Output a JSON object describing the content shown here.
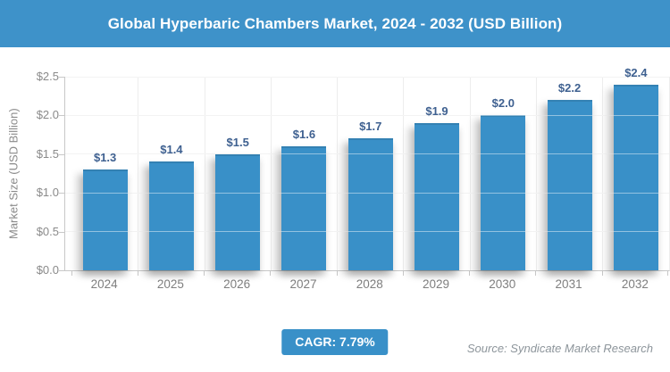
{
  "header": {
    "title": "Global Hyperbaric Chambers Market, 2024 - 2032 (USD Billion)"
  },
  "chart_data": {
    "type": "bar",
    "title": "Global Hyperbaric Chambers Market, 2024 - 2032 (USD Billion)",
    "categories": [
      "2024",
      "2025",
      "2026",
      "2027",
      "2028",
      "2029",
      "2030",
      "2031",
      "2032"
    ],
    "values": [
      1.3,
      1.4,
      1.5,
      1.6,
      1.7,
      1.9,
      2.0,
      2.2,
      2.4
    ],
    "bar_labels": [
      "$1.3",
      "$1.4",
      "$1.5",
      "$1.6",
      "$1.7",
      "$1.9",
      "$2.0",
      "$2.2",
      "$2.4"
    ],
    "xlabel": "",
    "ylabel": "Market Size (USD Billion)",
    "ylim": [
      0,
      2.5
    ],
    "ytick_values": [
      0.0,
      0.5,
      1.0,
      1.5,
      2.0,
      2.5
    ],
    "ytick_labels": [
      "$0.0",
      "$0.5",
      "$1.0",
      "$1.5",
      "$2.0",
      "$2.5"
    ],
    "grid": true,
    "legend": false,
    "bar_color": "#3990C8"
  },
  "footer": {
    "cagr_label": "CAGR: 7.79%",
    "source": "Source: Syndicate Market Research"
  },
  "colors": {
    "header_bg": "#3E92C9",
    "bar_blue": "#3990C8",
    "value_label": "#3E6090",
    "axis_text": "#8a8a8a",
    "gridline": "#e9e9e9",
    "axis_line": "#c8c8c8",
    "source_text": "#8d959b"
  }
}
